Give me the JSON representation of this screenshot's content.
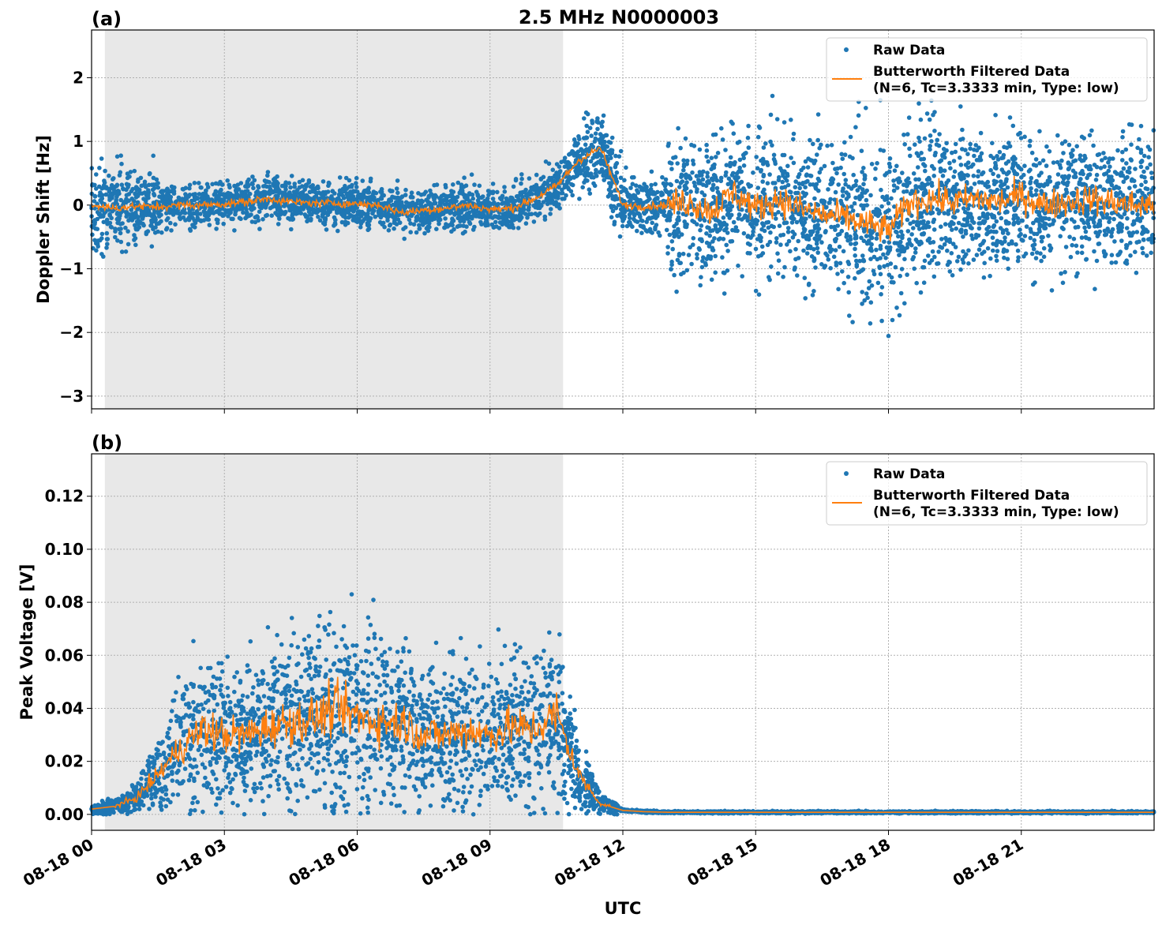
{
  "chart_data": [
    {
      "type": "scatter",
      "panel_label": "(a)",
      "title": "2.5 MHz N0000003",
      "ylabel": "Doppler Shift [Hz]",
      "xlabel": "",
      "ylim": [
        -3.2,
        2.75
      ],
      "xlim_hours_utc": [
        0,
        24
      ],
      "yticks": [
        -3,
        -2,
        -1,
        0,
        1,
        2
      ],
      "ytick_labels": [
        "−3",
        "−2",
        "−1",
        "0",
        "1",
        "2"
      ],
      "grid": true,
      "shaded_interval_hours_utc": [
        0.3,
        10.65
      ],
      "legend_placement": "top-right",
      "series": [
        {
          "name": "Raw Data",
          "kind": "points",
          "color": "#1f77b4",
          "approx_spread_hz": [
            0.6,
            0.6,
            0.5,
            0.3,
            0.3,
            0.3,
            0.3,
            0.3,
            0.3,
            0.3,
            0.3,
            0.3,
            0.3,
            0.3,
            0.3,
            0.3,
            0.3,
            0.3,
            0.3,
            0.3,
            0.35,
            0.35,
            0.5,
            0.5,
            0.4,
            0.4,
            1.0,
            1.0,
            1.0,
            1.0,
            1.1,
            1.0,
            1.0,
            1.0,
            1.2,
            1.2,
            1.2,
            1.2,
            1.1,
            1.0,
            1.0,
            1.0,
            1.0,
            1.0,
            1.0,
            1.0,
            1.0,
            1.0,
            1.0
          ]
        },
        {
          "name": "Butterworth Filtered Data\n(N=6, Tc=3.3333 min, Type: low)",
          "kind": "line",
          "color": "#ff7f0e",
          "x_hours_utc": [
            0,
            0.5,
            1,
            1.5,
            2,
            2.5,
            3,
            3.5,
            4,
            4.5,
            5,
            5.5,
            6,
            6.5,
            7,
            7.5,
            8,
            8.5,
            9,
            9.5,
            10,
            10.5,
            11,
            11.5,
            12,
            12.5,
            13,
            13.5,
            14,
            14.5,
            15,
            15.5,
            16,
            16.5,
            17,
            17.5,
            18,
            18.5,
            19,
            19.5,
            20,
            20.5,
            21,
            21.5,
            22,
            22.5,
            23,
            23.5,
            24
          ],
          "values": [
            0.0,
            -0.05,
            -0.02,
            -0.03,
            0.0,
            0.0,
            0.02,
            0.05,
            0.1,
            0.05,
            0.03,
            0.03,
            0.02,
            0.0,
            -0.12,
            -0.08,
            -0.05,
            0.0,
            -0.07,
            -0.05,
            0.1,
            0.3,
            0.7,
            0.9,
            0.0,
            -0.02,
            0.0,
            0.05,
            -0.1,
            0.2,
            -0.05,
            0.1,
            -0.05,
            -0.15,
            -0.2,
            -0.3,
            -0.4,
            0.05,
            0.1,
            0.05,
            0.1,
            0.05,
            0.15,
            0.0,
            0.05,
            0.1,
            0.05,
            0.0,
            0.0
          ]
        }
      ],
      "legend": [
        "Raw Data",
        "Butterworth Filtered Data",
        "(N=6, Tc=3.3333 min, Type: low)"
      ]
    },
    {
      "type": "scatter",
      "panel_label": "(b)",
      "ylabel": "Peak Voltage [V]",
      "xlabel": "UTC",
      "ylim": [
        -0.006,
        0.136
      ],
      "xlim_hours_utc": [
        0,
        24
      ],
      "yticks": [
        0,
        0.02,
        0.04,
        0.06,
        0.08,
        0.1,
        0.12
      ],
      "ytick_labels": [
        "0.00",
        "0.02",
        "0.04",
        "0.06",
        "0.08",
        "0.10",
        "0.12"
      ],
      "xticks_hours_utc": [
        0,
        3,
        6,
        9,
        12,
        15,
        18,
        21
      ],
      "xtick_labels": [
        "08-18 00",
        "08-18 03",
        "08-18 06",
        "08-18 09",
        "08-18 12",
        "08-18 15",
        "08-18 18",
        "08-18 21"
      ],
      "grid": true,
      "shaded_interval_hours_utc": [
        0.3,
        10.65
      ],
      "legend_placement": "top-right",
      "series": [
        {
          "name": "Raw Data",
          "kind": "points",
          "color": "#1f77b4"
        },
        {
          "name": "Butterworth Filtered Data\n(N=6, Tc=3.3333 min, Type: low)",
          "kind": "line",
          "color": "#ff7f0e",
          "x_hours_utc": [
            0,
            0.5,
            1,
            1.5,
            2,
            2.5,
            3,
            3.5,
            4,
            4.5,
            5,
            5.5,
            6,
            6.5,
            7,
            7.5,
            8,
            8.5,
            9,
            9.5,
            10,
            10.5,
            11,
            11.5,
            12,
            12.5,
            13,
            14,
            16,
            18,
            20,
            22,
            24
          ],
          "values": [
            0.002,
            0.003,
            0.006,
            0.015,
            0.025,
            0.032,
            0.03,
            0.03,
            0.033,
            0.035,
            0.036,
            0.04,
            0.037,
            0.035,
            0.035,
            0.03,
            0.03,
            0.032,
            0.03,
            0.033,
            0.032,
            0.038,
            0.015,
            0.004,
            0.0015,
            0.001,
            0.0008,
            0.0008,
            0.0008,
            0.0008,
            0.0008,
            0.0008,
            0.0008
          ]
        }
      ],
      "legend": [
        "Raw Data",
        "Butterworth Filtered Data",
        "(N=6, Tc=3.3333 min, Type: low)"
      ]
    }
  ]
}
